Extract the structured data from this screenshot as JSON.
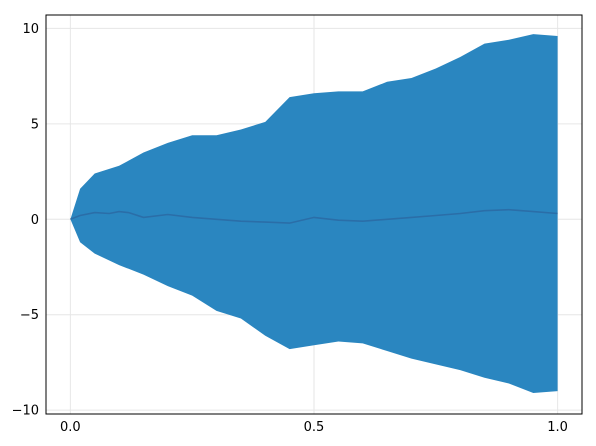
{
  "chart_data": {
    "type": "area",
    "title": "",
    "xlabel": "",
    "ylabel": "",
    "xlim": [
      -0.05,
      1.05
    ],
    "ylim": [
      -10.2,
      10.7
    ],
    "x_ticks": [
      0.0,
      0.5,
      1.0
    ],
    "x_tick_labels": [
      "0.0",
      "0.5",
      "1.0"
    ],
    "y_ticks": [
      10,
      5,
      0,
      -5,
      -10
    ],
    "y_tick_labels": [
      "10",
      "5",
      "0",
      "−5",
      "−10"
    ],
    "grid": true,
    "legend": "none",
    "colors": {
      "band": "#2a86c0",
      "line": "#2a6ea8"
    },
    "series": [
      {
        "kind": "band",
        "x": [
          0.0,
          0.02,
          0.05,
          0.1,
          0.15,
          0.2,
          0.25,
          0.3,
          0.35,
          0.4,
          0.45,
          0.5,
          0.55,
          0.6,
          0.65,
          0.7,
          0.75,
          0.8,
          0.85,
          0.9,
          0.95,
          1.0
        ],
        "upper": [
          0.0,
          1.6,
          2.4,
          2.8,
          3.5,
          4.0,
          4.4,
          4.4,
          4.7,
          5.1,
          6.4,
          6.6,
          6.7,
          6.7,
          7.2,
          7.4,
          7.9,
          8.5,
          9.2,
          9.4,
          9.7,
          9.6
        ],
        "lower": [
          0.0,
          -1.2,
          -1.8,
          -2.4,
          -2.9,
          -3.5,
          -4.0,
          -4.8,
          -5.2,
          -6.1,
          -6.8,
          -6.6,
          -6.4,
          -6.5,
          -6.9,
          -7.3,
          -7.6,
          -7.9,
          -8.3,
          -8.6,
          -9.1,
          -9.0
        ]
      },
      {
        "kind": "line",
        "x": [
          0.0,
          0.02,
          0.05,
          0.08,
          0.1,
          0.12,
          0.15,
          0.2,
          0.25,
          0.3,
          0.35,
          0.4,
          0.45,
          0.5,
          0.55,
          0.6,
          0.65,
          0.7,
          0.75,
          0.8,
          0.85,
          0.9,
          0.95,
          1.0
        ],
        "y": [
          0.0,
          0.2,
          0.35,
          0.3,
          0.4,
          0.35,
          0.1,
          0.25,
          0.1,
          0.0,
          -0.1,
          -0.15,
          -0.2,
          0.1,
          -0.05,
          -0.1,
          0.0,
          0.1,
          0.2,
          0.3,
          0.45,
          0.5,
          0.4,
          0.3
        ]
      }
    ]
  }
}
